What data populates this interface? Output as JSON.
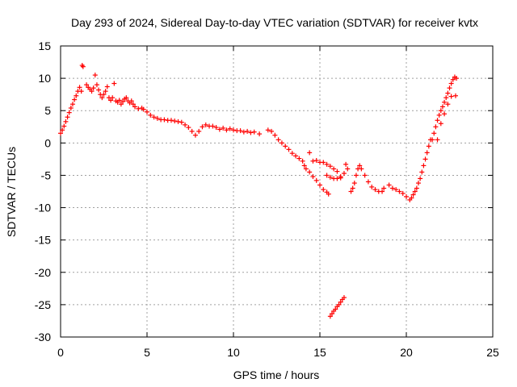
{
  "chart_data": {
    "type": "scatter",
    "title": "Day 293 of 2024, Sidereal Day-to-day VTEC variation (SDTVAR) for receiver kvtx",
    "xlabel": "GPS time / hours",
    "ylabel": "SDTVAR / TECUs",
    "xlim": [
      0,
      25
    ],
    "ylim": [
      -30,
      15
    ],
    "xticks": [
      0,
      5,
      10,
      15,
      20,
      25
    ],
    "yticks": [
      15,
      10,
      5,
      0,
      -5,
      -10,
      -15,
      -20,
      -25,
      -30
    ],
    "grid": true,
    "marker": "+",
    "color": "#ff0000",
    "series": [
      {
        "name": "kvtx",
        "points": [
          [
            0.0,
            1.5
          ],
          [
            0.1,
            2.0
          ],
          [
            0.2,
            2.6
          ],
          [
            0.3,
            3.3
          ],
          [
            0.4,
            4.0
          ],
          [
            0.5,
            4.7
          ],
          [
            0.6,
            5.4
          ],
          [
            0.7,
            6.0
          ],
          [
            0.8,
            6.7
          ],
          [
            0.9,
            7.3
          ],
          [
            1.0,
            8.0
          ],
          [
            1.1,
            8.6
          ],
          [
            1.2,
            8.0
          ],
          [
            1.25,
            12.0
          ],
          [
            1.3,
            11.8
          ],
          [
            1.5,
            9.0
          ],
          [
            1.6,
            8.6
          ],
          [
            1.7,
            8.3
          ],
          [
            1.8,
            8.0
          ],
          [
            1.9,
            8.5
          ],
          [
            2.0,
            10.5
          ],
          [
            2.1,
            9.0
          ],
          [
            2.2,
            8.2
          ],
          [
            2.3,
            7.5
          ],
          [
            2.4,
            7.0
          ],
          [
            2.5,
            7.5
          ],
          [
            2.6,
            8.0
          ],
          [
            2.7,
            8.7
          ],
          [
            2.8,
            7.0
          ],
          [
            2.9,
            6.6
          ],
          [
            3.0,
            7.0
          ],
          [
            3.1,
            9.2
          ],
          [
            3.2,
            6.5
          ],
          [
            3.3,
            6.3
          ],
          [
            3.4,
            6.6
          ],
          [
            3.5,
            6.0
          ],
          [
            3.6,
            6.4
          ],
          [
            3.7,
            6.8
          ],
          [
            3.8,
            7.0
          ],
          [
            3.9,
            6.5
          ],
          [
            4.0,
            6.2
          ],
          [
            4.1,
            6.5
          ],
          [
            4.2,
            6.0
          ],
          [
            4.3,
            5.6
          ],
          [
            4.5,
            5.3
          ],
          [
            4.7,
            5.4
          ],
          [
            4.8,
            5.2
          ],
          [
            5.0,
            4.8
          ],
          [
            5.2,
            4.3
          ],
          [
            5.4,
            4.0
          ],
          [
            5.6,
            3.8
          ],
          [
            5.8,
            3.6
          ],
          [
            6.0,
            3.6
          ],
          [
            6.2,
            3.5
          ],
          [
            6.4,
            3.5
          ],
          [
            6.6,
            3.4
          ],
          [
            6.8,
            3.3
          ],
          [
            7.0,
            3.2
          ],
          [
            7.2,
            2.8
          ],
          [
            7.4,
            2.4
          ],
          [
            7.6,
            1.8
          ],
          [
            7.8,
            1.2
          ],
          [
            8.0,
            1.8
          ],
          [
            8.2,
            2.5
          ],
          [
            8.4,
            2.8
          ],
          [
            8.6,
            2.6
          ],
          [
            8.8,
            2.6
          ],
          [
            9.0,
            2.4
          ],
          [
            9.2,
            2.1
          ],
          [
            9.4,
            2.3
          ],
          [
            9.6,
            2.0
          ],
          [
            9.8,
            2.2
          ],
          [
            10.0,
            2.0
          ],
          [
            10.2,
            1.9
          ],
          [
            10.4,
            1.9
          ],
          [
            10.6,
            1.7
          ],
          [
            10.8,
            1.8
          ],
          [
            11.0,
            1.6
          ],
          [
            11.2,
            1.7
          ],
          [
            11.5,
            1.4
          ],
          [
            12.0,
            2.0
          ],
          [
            12.2,
            1.8
          ],
          [
            12.4,
            1.2
          ],
          [
            12.6,
            0.5
          ],
          [
            12.8,
            0.0
          ],
          [
            13.0,
            -0.5
          ],
          [
            13.2,
            -1.0
          ],
          [
            13.4,
            -1.6
          ],
          [
            13.6,
            -2.0
          ],
          [
            13.8,
            -2.4
          ],
          [
            14.0,
            -2.8
          ],
          [
            14.1,
            -3.5
          ],
          [
            14.2,
            -4.0
          ],
          [
            14.4,
            -4.5
          ],
          [
            14.6,
            -5.2
          ],
          [
            14.8,
            -5.8
          ],
          [
            15.0,
            -6.5
          ],
          [
            15.2,
            -7.2
          ],
          [
            15.4,
            -7.6
          ],
          [
            15.5,
            -7.9
          ],
          [
            14.4,
            -1.5
          ],
          [
            14.6,
            -2.8
          ],
          [
            14.8,
            -2.7
          ],
          [
            15.0,
            -3.0
          ],
          [
            15.2,
            -3.0
          ],
          [
            15.4,
            -3.3
          ],
          [
            15.6,
            -3.6
          ],
          [
            15.8,
            -4.0
          ],
          [
            16.0,
            -4.4
          ],
          [
            16.2,
            -5.2
          ],
          [
            16.4,
            -4.7
          ],
          [
            16.5,
            -3.3
          ],
          [
            16.6,
            -4.0
          ],
          [
            15.4,
            -5.0
          ],
          [
            15.6,
            -5.3
          ],
          [
            15.8,
            -5.5
          ],
          [
            16.0,
            -5.5
          ],
          [
            16.2,
            -5.4
          ],
          [
            15.6,
            -26.8
          ],
          [
            15.7,
            -26.4
          ],
          [
            15.8,
            -26.0
          ],
          [
            15.9,
            -25.7
          ],
          [
            16.0,
            -25.3
          ],
          [
            16.1,
            -25.0
          ],
          [
            16.2,
            -24.6
          ],
          [
            16.3,
            -24.2
          ],
          [
            16.4,
            -23.9
          ],
          [
            16.8,
            -7.5
          ],
          [
            16.9,
            -7.0
          ],
          [
            17.0,
            -6.2
          ],
          [
            17.1,
            -5.0
          ],
          [
            17.2,
            -4.0
          ],
          [
            17.3,
            -3.5
          ],
          [
            17.4,
            -4.0
          ],
          [
            17.6,
            -5.0
          ],
          [
            17.8,
            -6.0
          ],
          [
            18.0,
            -6.8
          ],
          [
            18.2,
            -7.2
          ],
          [
            18.4,
            -7.5
          ],
          [
            18.6,
            -7.5
          ],
          [
            18.7,
            -7.0
          ],
          [
            19.0,
            -6.5
          ],
          [
            19.2,
            -7.0
          ],
          [
            19.4,
            -7.2
          ],
          [
            19.6,
            -7.5
          ],
          [
            19.8,
            -7.8
          ],
          [
            20.0,
            -8.3
          ],
          [
            20.2,
            -8.8
          ],
          [
            20.3,
            -8.5
          ],
          [
            20.4,
            -8.0
          ],
          [
            20.5,
            -7.5
          ],
          [
            20.6,
            -7.0
          ],
          [
            20.7,
            -6.2
          ],
          [
            20.8,
            -5.5
          ],
          [
            20.9,
            -4.5
          ],
          [
            21.0,
            -3.5
          ],
          [
            21.1,
            -2.5
          ],
          [
            21.2,
            -1.5
          ],
          [
            21.3,
            -0.5
          ],
          [
            21.4,
            0.5
          ],
          [
            21.5,
            0.5
          ],
          [
            21.6,
            1.5
          ],
          [
            21.7,
            2.5
          ],
          [
            21.8,
            3.5
          ],
          [
            21.9,
            4.3
          ],
          [
            22.0,
            5.0
          ],
          [
            22.1,
            5.6
          ],
          [
            22.2,
            6.3
          ],
          [
            22.3,
            7.0
          ],
          [
            22.4,
            7.7
          ],
          [
            22.5,
            8.5
          ],
          [
            22.6,
            9.2
          ],
          [
            22.7,
            9.8
          ],
          [
            22.8,
            10.2
          ],
          [
            22.9,
            10.0
          ],
          [
            22.85,
            7.3
          ],
          [
            22.6,
            7.2
          ],
          [
            22.4,
            6.0
          ],
          [
            22.2,
            4.5
          ],
          [
            22.0,
            3.0
          ],
          [
            21.8,
            0.5
          ]
        ]
      }
    ]
  }
}
